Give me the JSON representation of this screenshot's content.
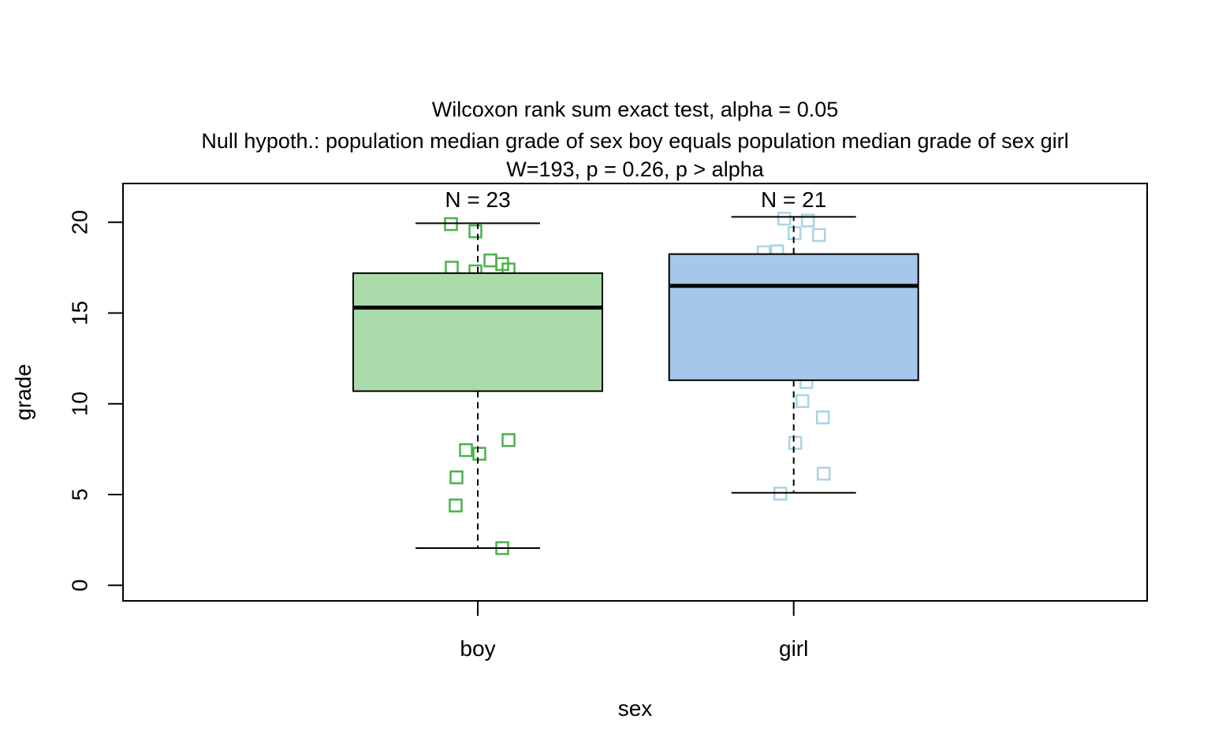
{
  "chart_data": {
    "type": "boxplot",
    "title_lines": [
      "Wilcoxon rank sum exact test, alpha = 0.05",
      "Null hypoth.: population median grade of sex boy equals population median grade of sex girl",
      "W=193, p = 0.26, p > alpha"
    ],
    "xlabel": "sex",
    "ylabel": "grade",
    "ylim": [
      0,
      20
    ],
    "yticks": [
      0,
      5,
      10,
      15,
      20
    ],
    "categories": [
      "boy",
      "girl"
    ],
    "grid": false,
    "legend": null,
    "groups": [
      {
        "label": "boy",
        "n": 23,
        "n_label": "N = 23",
        "box_fill": "#a9dbab",
        "point_color": "#4cb04c",
        "stats": {
          "whisker_low": 2.05,
          "q1": 10.7,
          "median": 15.3,
          "q3": 17.2,
          "whisker_high": 19.95
        },
        "points_visible": [
          {
            "dx": -34,
            "grade": 19.9
          },
          {
            "dx": -3,
            "grade": 19.5
          },
          {
            "dx": 16,
            "grade": 17.9
          },
          {
            "dx": 31,
            "grade": 17.7
          },
          {
            "dx": 39,
            "grade": 17.4
          },
          {
            "dx": -33,
            "grade": 17.5
          },
          {
            "dx": -3,
            "grade": 17.3
          },
          {
            "dx": 39,
            "grade": 8.0
          },
          {
            "dx": -15,
            "grade": 7.45
          },
          {
            "dx": 2,
            "grade": 7.25
          },
          {
            "dx": -27,
            "grade": 5.95
          },
          {
            "dx": -28,
            "grade": 4.4
          },
          {
            "dx": 31,
            "grade": 2.05
          }
        ]
      },
      {
        "label": "girl",
        "n": 21,
        "n_label": "N = 21",
        "box_fill": "#a4c7ea",
        "point_color": "#a8d4e4",
        "stats": {
          "whisker_low": 5.1,
          "q1": 11.3,
          "median": 16.5,
          "q3": 18.25,
          "whisker_high": 20.3
        },
        "points_visible": [
          {
            "dx": -12,
            "grade": 20.2
          },
          {
            "dx": 18,
            "grade": 20.1
          },
          {
            "dx": 1,
            "grade": 19.4
          },
          {
            "dx": 32,
            "grade": 19.3
          },
          {
            "dx": -38,
            "grade": 18.35
          },
          {
            "dx": -21,
            "grade": 18.4
          },
          {
            "dx": 16,
            "grade": 11.2
          },
          {
            "dx": 11,
            "grade": 10.15
          },
          {
            "dx": 37,
            "grade": 9.25
          },
          {
            "dx": 2,
            "grade": 7.85
          },
          {
            "dx": 38,
            "grade": 6.15
          },
          {
            "dx": -17,
            "grade": 5.05
          }
        ]
      }
    ]
  }
}
